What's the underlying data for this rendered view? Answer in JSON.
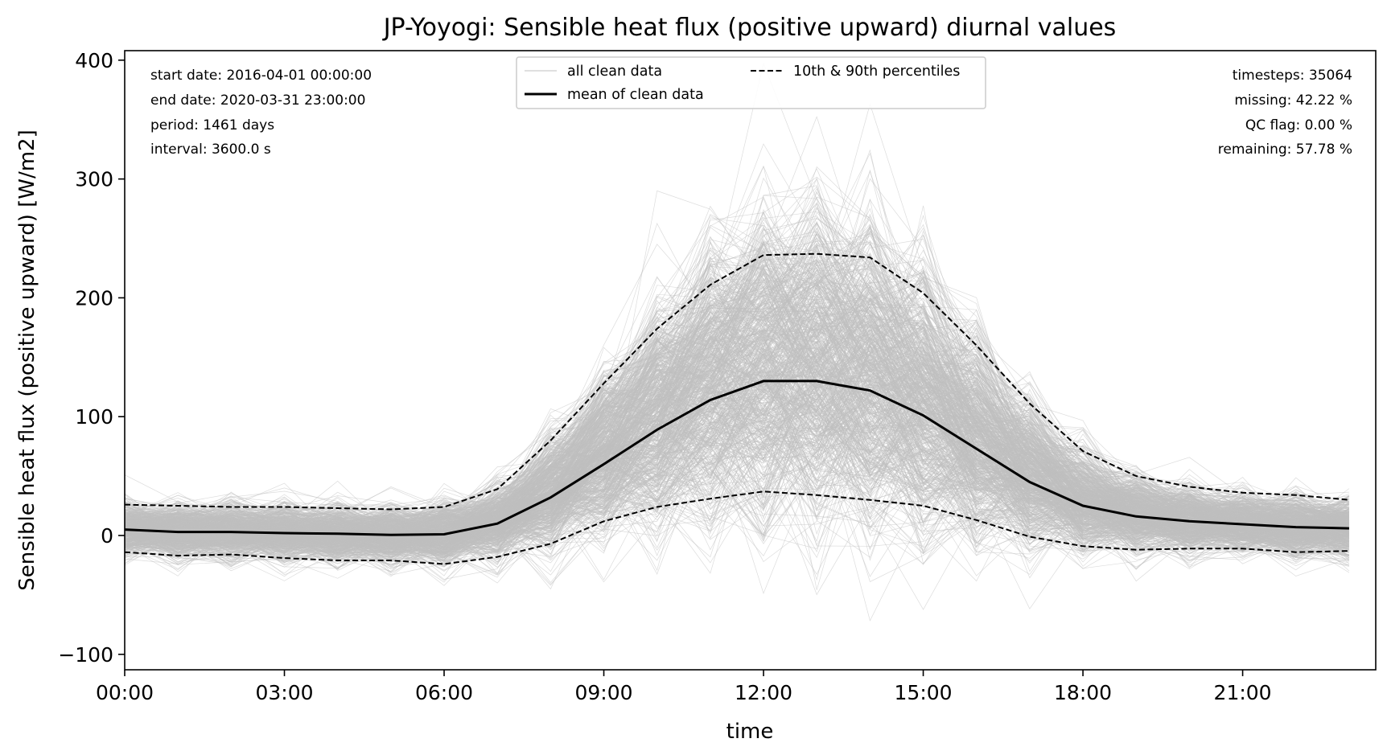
{
  "chart_data": {
    "type": "line",
    "title": "JP-Yoyogi: Sensible heat flux (positive upward) diurnal values",
    "xlabel": "time",
    "ylabel": "Sensible heat flux (positive upward) [W/m2]",
    "x_hours": [
      0,
      1,
      2,
      3,
      4,
      5,
      6,
      7,
      8,
      9,
      10,
      11,
      12,
      13,
      14,
      15,
      16,
      17,
      18,
      19,
      20,
      21,
      22,
      23
    ],
    "xlim_hours": [
      0,
      23.5
    ],
    "ylim": [
      -113,
      408
    ],
    "x_ticks": [
      {
        "hour": 0,
        "label": "00:00"
      },
      {
        "hour": 3,
        "label": "03:00"
      },
      {
        "hour": 6,
        "label": "06:00"
      },
      {
        "hour": 9,
        "label": "09:00"
      },
      {
        "hour": 12,
        "label": "12:00"
      },
      {
        "hour": 15,
        "label": "15:00"
      },
      {
        "hour": 18,
        "label": "18:00"
      },
      {
        "hour": 21,
        "label": "21:00"
      }
    ],
    "y_ticks": [
      {
        "value": -100,
        "label": "−100"
      },
      {
        "value": 0,
        "label": "0"
      },
      {
        "value": 100,
        "label": "100"
      },
      {
        "value": 200,
        "label": "200"
      },
      {
        "value": 300,
        "label": "300"
      },
      {
        "value": 400,
        "label": "400"
      }
    ],
    "series": [
      {
        "name": "mean of clean data",
        "color": "#000000",
        "style": "solid",
        "values": [
          5,
          3,
          3,
          2,
          1.5,
          0.5,
          1,
          10,
          32,
          60,
          89,
          114,
          130,
          130,
          122,
          101,
          73,
          45,
          25,
          16,
          12,
          9.5,
          7,
          6
        ]
      },
      {
        "name": "10th & 90th percentiles",
        "color": "#000000",
        "style": "dashed",
        "values": [
          26,
          25,
          24,
          24,
          23,
          22,
          24,
          39,
          80,
          128,
          174,
          211,
          236,
          237,
          234,
          204,
          160,
          111,
          71,
          50,
          41,
          36,
          34,
          30
        ]
      },
      {
        "name": "10th & 90th percentiles",
        "color": "#000000",
        "style": "dashed",
        "values": [
          -14,
          -17,
          -16,
          -19,
          -21,
          -21,
          -24,
          -18,
          -7,
          12,
          24,
          31,
          37,
          34,
          30,
          25,
          13,
          -1,
          -9,
          -12,
          -11,
          -11,
          -14,
          -13
        ]
      }
    ],
    "background_series": {
      "name": "all clean data",
      "color": "#c0c0c0",
      "count": 700
    },
    "legend": {
      "placement": "top-center",
      "entries": [
        {
          "label": "all clean data",
          "style": "thin-gray"
        },
        {
          "label": "10th & 90th percentiles",
          "style": "dashed"
        },
        {
          "label": "mean of clean data",
          "style": "solid"
        }
      ]
    },
    "info_left": [
      "start date: 2016-04-01 00:00:00",
      "end date: 2020-03-31 23:00:00",
      "period: 1461 days",
      "interval: 3600.0 s"
    ],
    "info_right": [
      "timesteps: 35064",
      "missing: 42.22 %",
      "QC flag: 0.00 %",
      "remaining: 57.78 %"
    ],
    "grid": false
  }
}
